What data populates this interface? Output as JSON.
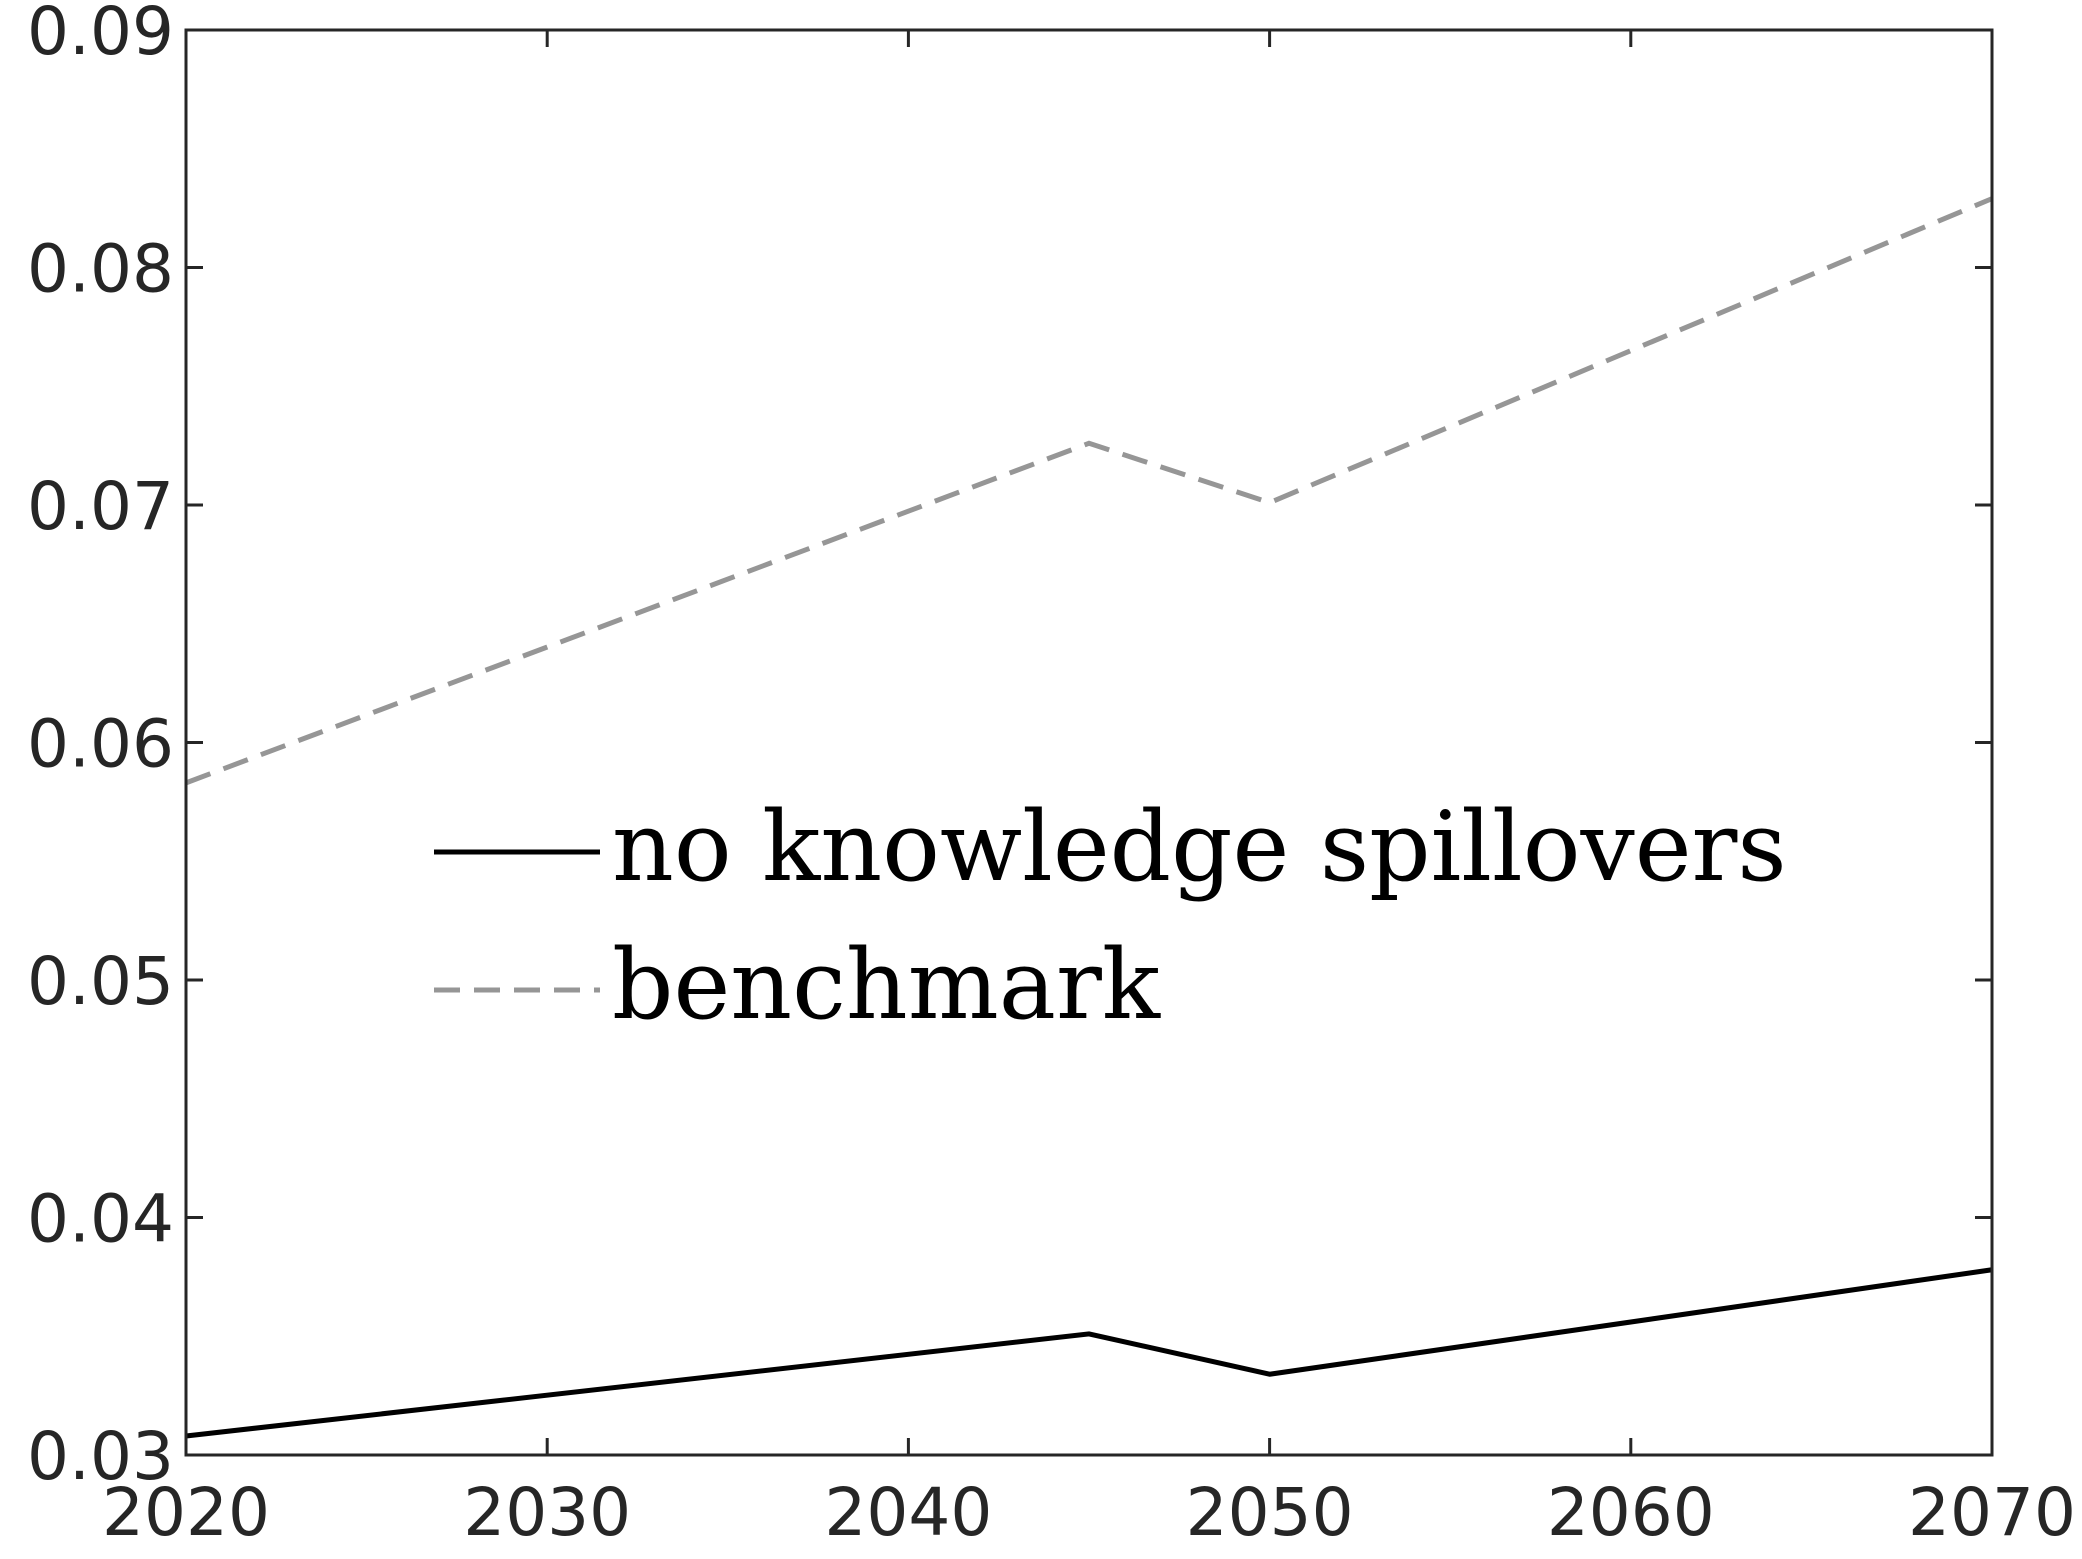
{
  "chart_data": {
    "type": "line",
    "title": "",
    "xlabel": "",
    "ylabel": "",
    "x": [
      2020,
      2045,
      2050,
      2070
    ],
    "xlim": [
      2020,
      2070
    ],
    "ylim": [
      0.03,
      0.09
    ],
    "xticks": [
      2020,
      2030,
      2040,
      2050,
      2060,
      2070
    ],
    "yticks": [
      0.03,
      0.04,
      0.05,
      0.06,
      0.07,
      0.08,
      0.09
    ],
    "xtick_labels": [
      "2020",
      "2030",
      "2040",
      "2050",
      "2060",
      "2070"
    ],
    "ytick_labels": [
      "0.03",
      "0.04",
      "0.05",
      "0.06",
      "0.07",
      "0.08",
      "0.09"
    ],
    "grid": false,
    "legend_position": "center-left",
    "series": [
      {
        "name": "no knowledge spillovers",
        "values": [
          0.0308,
          0.0351,
          0.0334,
          0.0378
        ],
        "color": "#000000",
        "style": "solid"
      },
      {
        "name": "benchmark",
        "values": [
          0.0583,
          0.0726,
          0.0701,
          0.0829
        ],
        "color": "#969696",
        "style": "dashed"
      }
    ]
  }
}
